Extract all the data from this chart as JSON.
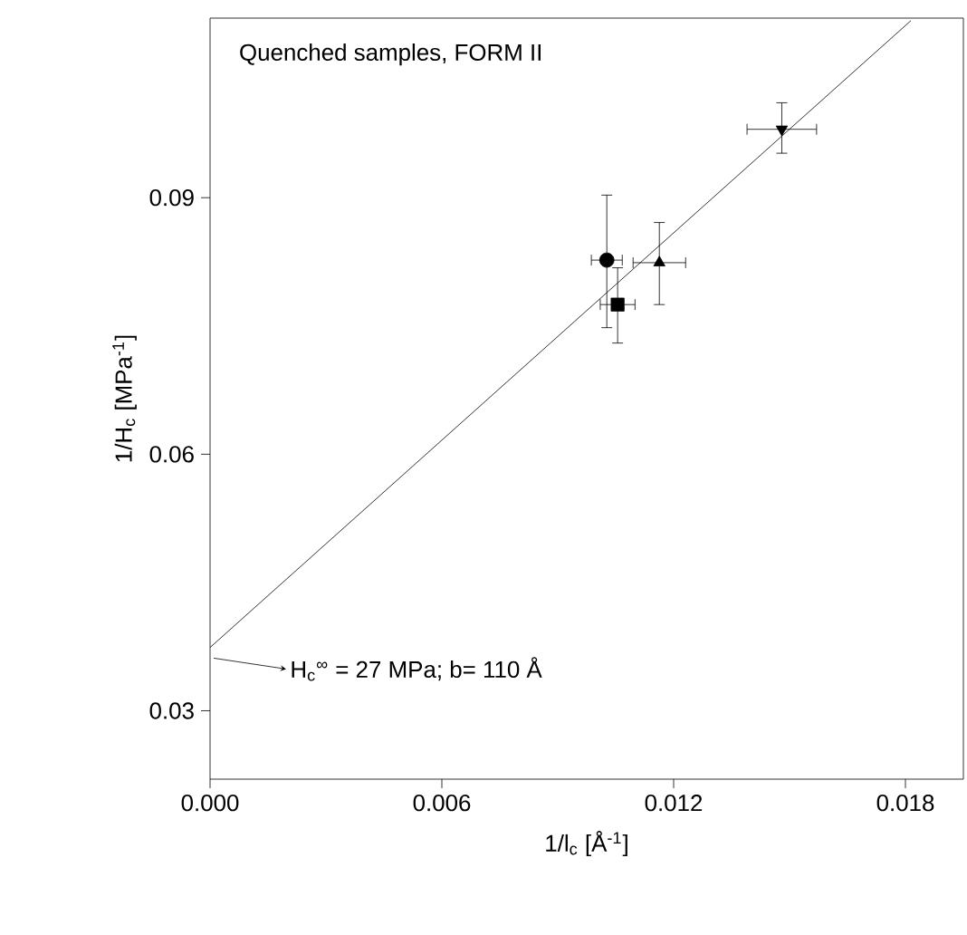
{
  "chart_data": {
    "type": "scatter",
    "xlabel": "1/l$_{c}$ [Å$^{-1}$]",
    "ylabel": "1/H$_{c}$ [MPa$^{-1}$]",
    "annotations": [
      "Quenched samples, FORM II",
      {
        "text": "H$_{c}$$^{∞}$ = 27 MPa; b= 110 Å",
        "x": 0,
        "y": 0.037
      }
    ],
    "xlim": [
      0,
      0.0195
    ],
    "ylim": [
      0.022,
      0.111
    ],
    "xticks": [
      {
        "value": 0,
        "label": "0.000"
      },
      0.006,
      0.012,
      0.018
    ],
    "yticks": [
      0.03,
      0.06,
      0.09
    ],
    "grid": false,
    "series": [
      {
        "marker": "circle",
        "color": "#000000",
        "x": [
          0.01027
        ],
        "values": [
          0.0827
        ],
        "errors": [
          [
            0.0748,
            0.0903
          ]
        ],
        "xerrors": [
          0.0004
        ]
      },
      {
        "marker": "square",
        "color": "#000000",
        "x": [
          0.01055
        ],
        "values": [
          0.0775
        ],
        "errors": [
          [
            0.073,
            0.0818
          ]
        ],
        "xerrors": [
          0.00045
        ]
      },
      {
        "marker": "triangle",
        "color": "#000000",
        "x": [
          0.01163
        ],
        "values": [
          0.0824
        ],
        "errors": [
          [
            0.0775,
            0.0871
          ]
        ],
        "xerrors": [
          0.00068
        ]
      },
      {
        "marker": "triangle_down",
        "color": "#000000",
        "x": [
          0.0148
        ],
        "values": [
          0.098
        ],
        "errors": [
          [
            0.0952,
            0.1011
          ]
        ],
        "xerrors": [
          0.0009
        ]
      },
      {
        "type": "line",
        "marker": "none",
        "line_style": "solid",
        "color": "#000000",
        "x": [
          0,
          0.01814
        ],
        "values": [
          0.0374,
          0.1107
        ]
      }
    ]
  }
}
